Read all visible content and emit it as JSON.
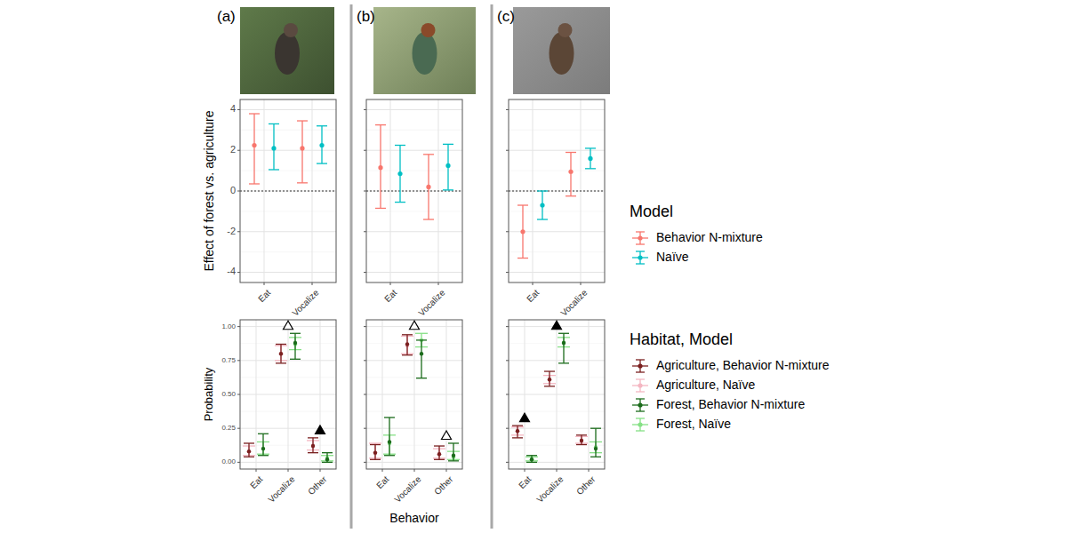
{
  "chart_data": [
    {
      "type": "errorbar",
      "title": "(a)",
      "y_label": "Effect of forest vs. agriculture",
      "categories": [
        "Eat",
        "Vocalize"
      ],
      "ylim": [
        -4.5,
        4.5
      ],
      "yticks": [
        -4,
        -2,
        0,
        2,
        4
      ],
      "grid": true,
      "hline": 0,
      "legend": "right",
      "legend_title": "Model",
      "series": [
        {
          "name": "Behavior N-mixture",
          "color": "#f8766d",
          "values": [
            2.25,
            2.1
          ],
          "lower": [
            0.35,
            0.4
          ],
          "upper": [
            3.8,
            3.45
          ]
        },
        {
          "name": "Naïve",
          "color": "#00bfc4",
          "values": [
            2.1,
            2.25
          ],
          "lower": [
            1.05,
            1.35
          ],
          "upper": [
            3.3,
            3.2
          ]
        }
      ]
    },
    {
      "type": "errorbar",
      "title": "(b)",
      "categories": [
        "Eat",
        "Vocalize"
      ],
      "ylim": [
        -4.5,
        4.5
      ],
      "yticks": [
        -4,
        -2,
        0,
        2,
        4
      ],
      "grid": true,
      "hline": 0,
      "tick_labels": "x",
      "series": [
        {
          "name": "Behavior N-mixture",
          "color": "#f8766d",
          "values": [
            1.15,
            0.2
          ],
          "lower": [
            -0.85,
            -1.4
          ],
          "upper": [
            3.25,
            1.8
          ]
        },
        {
          "name": "Naïve",
          "color": "#00bfc4",
          "values": [
            0.85,
            1.25
          ],
          "lower": [
            -0.55,
            0.05
          ],
          "upper": [
            2.25,
            2.3
          ]
        }
      ]
    },
    {
      "type": "errorbar",
      "title": "(c)",
      "categories": [
        "Eat",
        "Vocalize"
      ],
      "ylim": [
        -4.5,
        4.5
      ],
      "yticks": [
        -4,
        -2,
        0,
        2,
        4
      ],
      "grid": true,
      "hline": 0,
      "tick_labels": "x",
      "series": [
        {
          "name": "Behavior N-mixture",
          "color": "#f8766d",
          "values": [
            -2.0,
            0.95
          ],
          "lower": [
            -3.3,
            -0.25
          ],
          "upper": [
            -0.7,
            1.9
          ]
        },
        {
          "name": "Naïve",
          "color": "#00bfc4",
          "values": [
            -0.7,
            1.6
          ],
          "lower": [
            -1.4,
            1.1
          ],
          "upper": [
            0.0,
            2.1
          ]
        }
      ]
    },
    {
      "type": "errorbar",
      "y_label": "Probability",
      "categories": [
        "Eat",
        "Vocalize",
        "Other"
      ],
      "ylim": [
        -0.05,
        1.05
      ],
      "yticks": [
        {
          "value": 0,
          "label": "0.00"
        },
        {
          "value": 0.25,
          "label": "0.25"
        },
        {
          "value": 0.5,
          "label": "0.50"
        },
        {
          "value": 0.75,
          "label": "0.75"
        },
        {
          "value": 1,
          "label": "1.00"
        }
      ],
      "grid": true,
      "legend": "right",
      "legend_title": "Habitat, Model",
      "annotations": [
        {
          "category": "Vocalize",
          "marker": "open-triangle"
        },
        {
          "category": "Other",
          "marker": "filled-triangle"
        }
      ],
      "series": [
        {
          "name": "Agriculture, Behavior N-mixture",
          "color": "#7a1f1f",
          "values": [
            0.08,
            0.8,
            0.12
          ],
          "lower": [
            0.04,
            0.73,
            0.07
          ],
          "upper": [
            0.14,
            0.87,
            0.18
          ]
        },
        {
          "name": "Agriculture, Naïve",
          "color": "#f4b6c2",
          "values": [
            0.08,
            0.8,
            0.12
          ],
          "lower": [
            0.05,
            0.75,
            0.09
          ],
          "upper": [
            0.12,
            0.86,
            0.16
          ]
        },
        {
          "name": "Forest, Behavior N-mixture",
          "color": "#1b6b1b",
          "values": [
            0.1,
            0.88,
            0.02
          ],
          "lower": [
            0.05,
            0.76,
            0.0
          ],
          "upper": [
            0.21,
            0.95,
            0.07
          ]
        },
        {
          "name": "Forest, Naïve",
          "color": "#86e086",
          "values": [
            0.1,
            0.87,
            0.03
          ],
          "lower": [
            0.06,
            0.83,
            0.01
          ],
          "upper": [
            0.15,
            0.92,
            0.05
          ]
        }
      ]
    },
    {
      "type": "errorbar",
      "x_label": "Behavior",
      "categories": [
        "Eat",
        "Vocalize",
        "Other"
      ],
      "ylim": [
        -0.05,
        1.05
      ],
      "yticks": [
        {
          "value": 0,
          "label": "0.00"
        },
        {
          "value": 0.25,
          "label": "0.25"
        },
        {
          "value": 0.5,
          "label": "0.50"
        },
        {
          "value": 0.75,
          "label": "0.75"
        },
        {
          "value": 1,
          "label": "1.00"
        }
      ],
      "grid": true,
      "tick_labels": "x",
      "annotations": [
        {
          "category": "Vocalize",
          "marker": "open-triangle"
        },
        {
          "category": "Other",
          "marker": "open-triangle"
        }
      ],
      "series": [
        {
          "name": "Agriculture, Behavior N-mixture",
          "color": "#7a1f1f",
          "values": [
            0.07,
            0.87,
            0.06
          ],
          "lower": [
            0.02,
            0.79,
            0.02
          ],
          "upper": [
            0.13,
            0.94,
            0.12
          ]
        },
        {
          "name": "Agriculture, Naïve",
          "color": "#f4b6c2",
          "values": [
            0.07,
            0.86,
            0.06
          ],
          "lower": [
            0.03,
            0.8,
            0.03
          ],
          "upper": [
            0.14,
            0.93,
            0.1
          ]
        },
        {
          "name": "Forest, Behavior N-mixture",
          "color": "#1b6b1b",
          "values": [
            0.15,
            0.8,
            0.05
          ],
          "lower": [
            0.05,
            0.62,
            0.01
          ],
          "upper": [
            0.33,
            0.9,
            0.14
          ]
        },
        {
          "name": "Forest, Naïve",
          "color": "#86e086",
          "values": [
            0.14,
            0.9,
            0.04
          ],
          "lower": [
            0.06,
            0.85,
            0.02
          ],
          "upper": [
            0.2,
            0.95,
            0.08
          ]
        }
      ]
    },
    {
      "type": "errorbar",
      "categories": [
        "Eat",
        "Vocalize",
        "Other"
      ],
      "ylim": [
        -0.05,
        1.05
      ],
      "yticks": [
        {
          "value": 0,
          "label": "0.00"
        },
        {
          "value": 0.25,
          "label": "0.25"
        },
        {
          "value": 0.5,
          "label": "0.50"
        },
        {
          "value": 0.75,
          "label": "0.75"
        },
        {
          "value": 1,
          "label": "1.00"
        }
      ],
      "grid": true,
      "tick_labels": "x",
      "annotations": [
        {
          "category": "Eat",
          "marker": "filled-triangle"
        },
        {
          "category": "Vocalize",
          "marker": "filled-triangle"
        }
      ],
      "series": [
        {
          "name": "Agriculture, Behavior N-mixture",
          "color": "#7a1f1f",
          "values": [
            0.23,
            0.61,
            0.16
          ],
          "lower": [
            0.18,
            0.56,
            0.13
          ],
          "upper": [
            0.27,
            0.67,
            0.2
          ]
        },
        {
          "name": "Agriculture, Naïve",
          "color": "#f4b6c2",
          "values": [
            0.23,
            0.61,
            0.16
          ],
          "lower": [
            0.2,
            0.58,
            0.14
          ],
          "upper": [
            0.26,
            0.64,
            0.19
          ]
        },
        {
          "name": "Forest, Behavior N-mixture",
          "color": "#1b6b1b",
          "values": [
            0.02,
            0.88,
            0.1
          ],
          "lower": [
            0.0,
            0.73,
            0.04
          ],
          "upper": [
            0.05,
            0.95,
            0.25
          ]
        },
        {
          "name": "Forest, Naïve",
          "color": "#86e086",
          "values": [
            0.02,
            0.88,
            0.11
          ],
          "lower": [
            0.01,
            0.85,
            0.07
          ],
          "upper": [
            0.04,
            0.92,
            0.15
          ]
        }
      ]
    }
  ]
}
